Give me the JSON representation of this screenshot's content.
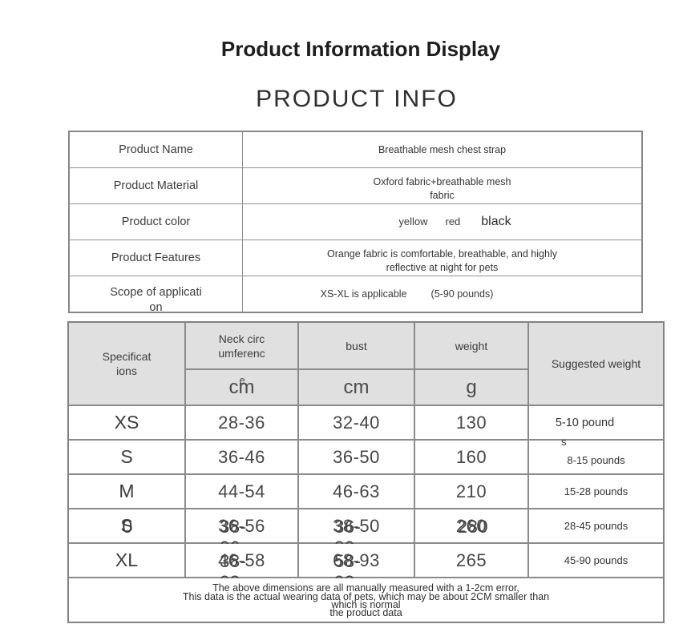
{
  "meta": {
    "colors": {
      "table_border": "#8a8a8a",
      "header_cell_bg": "#e0e0e0",
      "title_text": "#1d1d1d",
      "body_text": "#3a3a3a"
    }
  },
  "header": {
    "title": "Product Information Display",
    "subtitle": "PRODUCT INFO"
  },
  "product_info": {
    "rows": [
      {
        "label": "Product Name",
        "value": "Breathable mesh chest strap"
      },
      {
        "label": "Product Material",
        "value_line1": "Oxford fabric+breathable mesh",
        "value_line2": "fabric"
      },
      {
        "label": "Product color",
        "colors": [
          "yellow",
          "red",
          "black"
        ]
      },
      {
        "label": "Product Features",
        "value_line1": "Orange fabric is comfortable, breathable, and highly",
        "value_line2": "reflective at night for pets"
      },
      {
        "label_line1": "Scope of applicati",
        "label_line2": "on",
        "value_left": "XS-XL is applicable",
        "value_right": "(5-90 pounds)"
      }
    ]
  },
  "spec_table": {
    "header": {
      "col1_line1": "Specificat",
      "col1_line2": "ions",
      "neck_line1": "Neck circ",
      "neck_line2": "umferenc",
      "neck_overflow": "e",
      "bust_label": "bust",
      "weight_label": "weight",
      "neck_unit": "cm",
      "bust_unit": "cm",
      "weight_unit": "g",
      "suggested_label": "Suggested weight"
    },
    "rows": [
      {
        "size": "XS",
        "neck": "28-36",
        "bust": "32-40",
        "weight": "130",
        "suggested": "5-10 pound",
        "suggested_overflow": "s"
      },
      {
        "size": "S",
        "neck": "36-46",
        "bust": "36-50",
        "weight": "160",
        "suggested": "8-15 pounds"
      },
      {
        "size": "M",
        "neck": "44-54",
        "bust": "46-63",
        "weight": "210",
        "suggested": "15-28 pounds"
      },
      {
        "size": "S",
        "size_ghost": "0",
        "neck": "36-56",
        "neck_ghost": "38-06",
        "bust": "38-50",
        "bust_ghost": "36-80",
        "weight": "260",
        "weight_ghost": "280",
        "suggested": "28-45 pounds"
      },
      {
        "size": "XL",
        "neck": "46-58",
        "neck_ghost": "38-93",
        "bust": "68-93",
        "bust_ghost": "58-93",
        "weight": "265",
        "suggested": "45-90 pounds"
      }
    ],
    "footnote": {
      "line_a1": "The above dimensions are all manually measured with a 1-2cm error,",
      "line_b1": "This data is the actual wearing data of pets, which may be about 2CM smaller than",
      "line_a2": "which is normal",
      "line_b2": "the product data"
    }
  }
}
